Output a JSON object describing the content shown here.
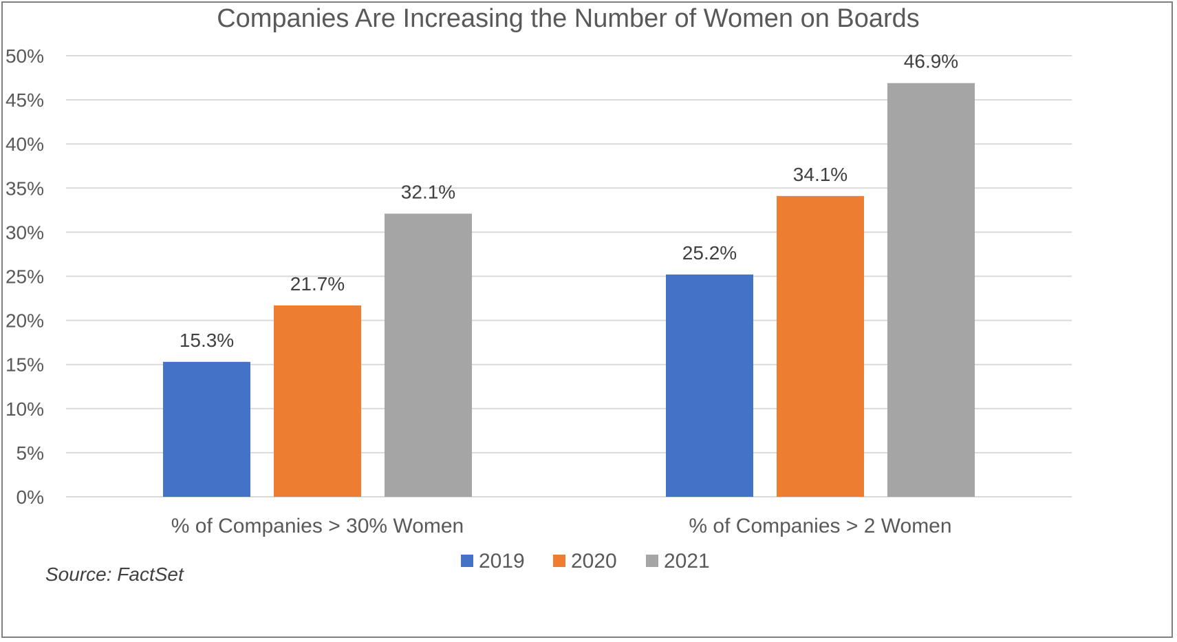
{
  "chart_data": {
    "type": "bar",
    "title": "Companies Are Increasing the Number of Women on Boards",
    "categories": [
      "% of Companies > 30% Women",
      "% of Companies > 2 Women"
    ],
    "series": [
      {
        "name": "2019",
        "values": [
          15.3,
          25.2
        ],
        "labels": [
          "15.3%",
          "25.2%"
        ],
        "color": "#4472c4"
      },
      {
        "name": "2020",
        "values": [
          21.7,
          34.1
        ],
        "labels": [
          "21.7%",
          "34.1%"
        ],
        "color": "#ed7d31"
      },
      {
        "name": "2021",
        "values": [
          32.1,
          46.9
        ],
        "labels": [
          "32.1%",
          "46.9%"
        ],
        "color": "#a5a5a5"
      }
    ],
    "ylim": [
      0,
      50
    ],
    "yticks": [
      0,
      5,
      10,
      15,
      20,
      25,
      30,
      35,
      40,
      45,
      50
    ],
    "ytick_labels": [
      "0%",
      "5%",
      "10%",
      "15%",
      "20%",
      "25%",
      "30%",
      "35%",
      "40%",
      "45%",
      "50%"
    ],
    "grid": true,
    "legend": "bottom",
    "source": "Source: FactSet"
  }
}
